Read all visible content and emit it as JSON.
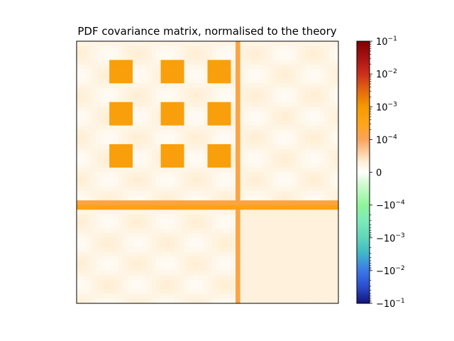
{
  "chart_data": {
    "type": "heatmap",
    "title": "PDF covariance matrix, normalised to the theory",
    "xlabel": "",
    "ylabel": "",
    "x_ticks_shown": false,
    "y_ticks_shown": false,
    "grid": false,
    "legend": "none",
    "matrix_size": 56,
    "value_range": [
      -0.1,
      0.1
    ],
    "color_scale": "symmetric-log",
    "linthresh": 0.0001,
    "colormap_stops": [
      {
        "v": -0.1,
        "color": "#14147a"
      },
      {
        "v": -0.03,
        "color": "#2a4fd0"
      },
      {
        "v": -0.01,
        "color": "#3c78e8"
      },
      {
        "v": -0.003,
        "color": "#3fb7c8"
      },
      {
        "v": -0.001,
        "color": "#5fd6b8"
      },
      {
        "v": -0.0003,
        "color": "#7deaba"
      },
      {
        "v": -0.0001,
        "color": "#8ff59a"
      },
      {
        "v": -3e-05,
        "color": "#d8fbd6"
      },
      {
        "v": 0,
        "color": "#ffffff"
      },
      {
        "v": 3e-05,
        "color": "#fff0d8"
      },
      {
        "v": 0.0001,
        "color": "#f9a35c"
      },
      {
        "v": 0.0003,
        "color": "#ffa51a"
      },
      {
        "v": 0.001,
        "color": "#f59a00"
      },
      {
        "v": 0.003,
        "color": "#e46a10"
      },
      {
        "v": 0.01,
        "color": "#cc2f1c"
      },
      {
        "v": 0.03,
        "color": "#a81414"
      },
      {
        "v": 0.1,
        "color": "#800000"
      }
    ],
    "colorbar": {
      "ticks": [
        {
          "value": 0.1,
          "label": "10^-1"
        },
        {
          "value": 0.01,
          "label": "10^-2"
        },
        {
          "value": 0.001,
          "label": "10^-3"
        },
        {
          "value": 0.0001,
          "label": "10^-4"
        },
        {
          "value": 0,
          "label": "0"
        },
        {
          "value": -0.0001,
          "label": "−10^-4"
        },
        {
          "value": -0.001,
          "label": "−10^-3"
        },
        {
          "value": -0.01,
          "label": "−10^-2"
        },
        {
          "value": -0.1,
          "label": "−10^-1"
        }
      ]
    },
    "block_pattern": {
      "description": "approximate reconstruction of visible structure",
      "background_value": 2e-05,
      "bright_blocks_value": 0.0006,
      "row_groups": [
        [
          4,
          8
        ],
        [
          13,
          17
        ],
        [
          22,
          26
        ]
      ],
      "col_groups": [
        [
          7,
          11
        ],
        [
          18,
          22
        ],
        [
          28,
          32
        ]
      ],
      "cross_index": 34,
      "cross_value": 0.00015,
      "divider_row": 35,
      "divider_value": 0.0004
    }
  }
}
